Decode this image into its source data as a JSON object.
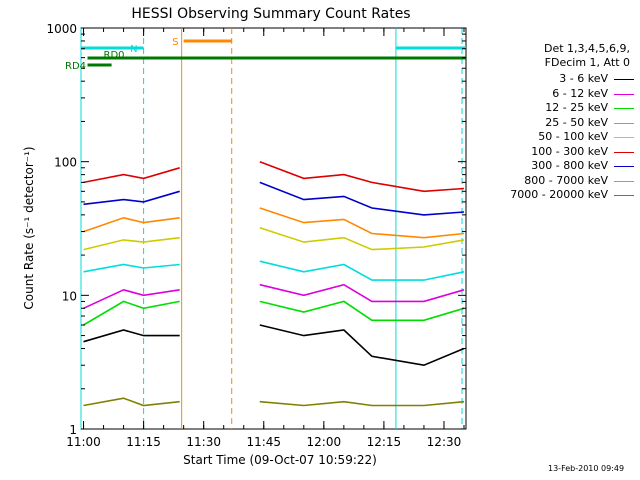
{
  "chart_data": {
    "type": "line",
    "title": "HESSI Observing Summary Count Rates",
    "xlabel": "Start Time (09-Oct-07 10:59:22)",
    "ylabel": "Count Rate (s⁻¹ detector⁻¹)",
    "y_scale": "log",
    "ylim": [
      1,
      1000
    ],
    "xlim": [
      "10:59:22",
      "12:35:30"
    ],
    "x_ticks": [
      "11:00",
      "11:15",
      "11:30",
      "11:45",
      "12:00",
      "12:15",
      "12:30"
    ],
    "y_ticks": [
      "1",
      "10",
      "100",
      "1000"
    ],
    "footer": "13-Feb-2010 09:49",
    "legend": {
      "placement": "right",
      "header": [
        "Det 1,3,4,5,6,9,",
        "FDecim 1, Att 0"
      ]
    },
    "gaps": [
      {
        "start": "11:24:30",
        "end": "11:42:00"
      }
    ],
    "series": [
      {
        "name": "3 - 6 keV",
        "color": "#000000",
        "values": [
          {
            "t": "11:00",
            "v": 4.5
          },
          {
            "t": "11:10",
            "v": 5.5
          },
          {
            "t": "11:15",
            "v": 5
          },
          {
            "t": "11:24",
            "v": 5
          },
          {
            "t": "11:44",
            "v": 6
          },
          {
            "t": "11:55",
            "v": 5
          },
          {
            "t": "12:05",
            "v": 5.5
          },
          {
            "t": "12:12",
            "v": 3.5
          },
          {
            "t": "12:25",
            "v": 3
          },
          {
            "t": "12:35",
            "v": 4
          }
        ]
      },
      {
        "name": "6 - 12 keV",
        "color": "#dd00dd",
        "values": [
          {
            "t": "11:00",
            "v": 8
          },
          {
            "t": "11:10",
            "v": 11
          },
          {
            "t": "11:15",
            "v": 10
          },
          {
            "t": "11:24",
            "v": 11
          },
          {
            "t": "11:44",
            "v": 12
          },
          {
            "t": "11:55",
            "v": 10
          },
          {
            "t": "12:05",
            "v": 12
          },
          {
            "t": "12:12",
            "v": 9
          },
          {
            "t": "12:25",
            "v": 9
          },
          {
            "t": "12:35",
            "v": 11
          }
        ]
      },
      {
        "name": "12 - 25 keV",
        "color": "#00dd00",
        "values": [
          {
            "t": "11:00",
            "v": 6
          },
          {
            "t": "11:10",
            "v": 9
          },
          {
            "t": "11:15",
            "v": 8
          },
          {
            "t": "11:24",
            "v": 9
          },
          {
            "t": "11:44",
            "v": 9
          },
          {
            "t": "11:55",
            "v": 7.5
          },
          {
            "t": "12:05",
            "v": 9
          },
          {
            "t": "12:12",
            "v": 6.5
          },
          {
            "t": "12:25",
            "v": 6.5
          },
          {
            "t": "12:35",
            "v": 8
          }
        ]
      },
      {
        "name": "25 - 50 keV",
        "color": "#00dddd",
        "values": [
          {
            "t": "11:00",
            "v": 15
          },
          {
            "t": "11:10",
            "v": 17
          },
          {
            "t": "11:15",
            "v": 16
          },
          {
            "t": "11:24",
            "v": 17
          },
          {
            "t": "11:44",
            "v": 18
          },
          {
            "t": "11:55",
            "v": 15
          },
          {
            "t": "12:05",
            "v": 17
          },
          {
            "t": "12:12",
            "v": 13
          },
          {
            "t": "12:25",
            "v": 13
          },
          {
            "t": "12:35",
            "v": 15
          }
        ]
      },
      {
        "name": "50 - 100 keV",
        "color": "#cccc00",
        "values": [
          {
            "t": "11:00",
            "v": 22
          },
          {
            "t": "11:10",
            "v": 26
          },
          {
            "t": "11:15",
            "v": 25
          },
          {
            "t": "11:24",
            "v": 27
          },
          {
            "t": "11:44",
            "v": 32
          },
          {
            "t": "11:55",
            "v": 25
          },
          {
            "t": "12:05",
            "v": 27
          },
          {
            "t": "12:12",
            "v": 22
          },
          {
            "t": "12:25",
            "v": 23
          },
          {
            "t": "12:35",
            "v": 26
          }
        ]
      },
      {
        "name": "100 - 300 keV",
        "color": "#dd0000",
        "values": [
          {
            "t": "11:00",
            "v": 70
          },
          {
            "t": "11:10",
            "v": 80
          },
          {
            "t": "11:15",
            "v": 75
          },
          {
            "t": "11:24",
            "v": 90
          },
          {
            "t": "11:44",
            "v": 100
          },
          {
            "t": "11:55",
            "v": 75
          },
          {
            "t": "12:05",
            "v": 80
          },
          {
            "t": "12:12",
            "v": 70
          },
          {
            "t": "12:25",
            "v": 60
          },
          {
            "t": "12:35",
            "v": 63
          }
        ]
      },
      {
        "name": "300 - 800 keV",
        "color": "#0000cc",
        "values": [
          {
            "t": "11:00",
            "v": 48
          },
          {
            "t": "11:10",
            "v": 52
          },
          {
            "t": "11:15",
            "v": 50
          },
          {
            "t": "11:24",
            "v": 60
          },
          {
            "t": "11:44",
            "v": 70
          },
          {
            "t": "11:55",
            "v": 52
          },
          {
            "t": "12:05",
            "v": 55
          },
          {
            "t": "12:12",
            "v": 45
          },
          {
            "t": "12:25",
            "v": 40
          },
          {
            "t": "12:35",
            "v": 42
          }
        ]
      },
      {
        "name": "800 - 7000 keV",
        "color": "#ff8800",
        "values": [
          {
            "t": "11:00",
            "v": 30
          },
          {
            "t": "11:10",
            "v": 38
          },
          {
            "t": "11:15",
            "v": 35
          },
          {
            "t": "11:24",
            "v": 38
          },
          {
            "t": "11:44",
            "v": 45
          },
          {
            "t": "11:55",
            "v": 35
          },
          {
            "t": "12:05",
            "v": 37
          },
          {
            "t": "12:12",
            "v": 29
          },
          {
            "t": "12:25",
            "v": 27
          },
          {
            "t": "12:35",
            "v": 29
          }
        ]
      },
      {
        "name": "7000 - 20000 keV",
        "color": "#808000",
        "values": [
          {
            "t": "11:00",
            "v": 1.5
          },
          {
            "t": "11:10",
            "v": 1.7
          },
          {
            "t": "11:15",
            "v": 1.5
          },
          {
            "t": "11:24",
            "v": 1.6
          },
          {
            "t": "11:44",
            "v": 1.6
          },
          {
            "t": "11:55",
            "v": 1.5
          },
          {
            "t": "12:05",
            "v": 1.6
          },
          {
            "t": "12:12",
            "v": 1.5
          },
          {
            "t": "12:25",
            "v": 1.5
          },
          {
            "t": "12:35",
            "v": 1.6
          }
        ]
      }
    ],
    "flags": [
      {
        "label": "N",
        "color": "#00dddd",
        "segments": [
          {
            "start": "10:59:22",
            "end": "11:15:00"
          },
          {
            "start": "12:18:00",
            "end": "12:35:30"
          }
        ]
      },
      {
        "label": "S",
        "color": "#ff8800",
        "segments": [
          {
            "start": "11:25:00",
            "end": "11:37:00"
          }
        ]
      },
      {
        "label": "RD0",
        "color": "#007700",
        "segments": [
          {
            "start": "11:01:00",
            "end": "12:35:30"
          }
        ]
      },
      {
        "label": "RD4",
        "color": "#007700",
        "segments": [
          {
            "start": "11:01:00",
            "end": "11:07:00"
          }
        ]
      }
    ],
    "vertical_markers": [
      {
        "t": "10:59:22",
        "color": "#00dddd",
        "style": "solid"
      },
      {
        "t": "11:15:00",
        "color": "#00dddd",
        "style": "dashed"
      },
      {
        "t": "11:24:30",
        "color": "#ff8800",
        "style": "solid"
      },
      {
        "t": "11:37:00",
        "color": "#ff8800",
        "style": "dashed"
      },
      {
        "t": "12:18:00",
        "color": "#00dddd",
        "style": "solid"
      },
      {
        "t": "12:34:30",
        "color": "#00dddd",
        "style": "dashed"
      }
    ]
  }
}
